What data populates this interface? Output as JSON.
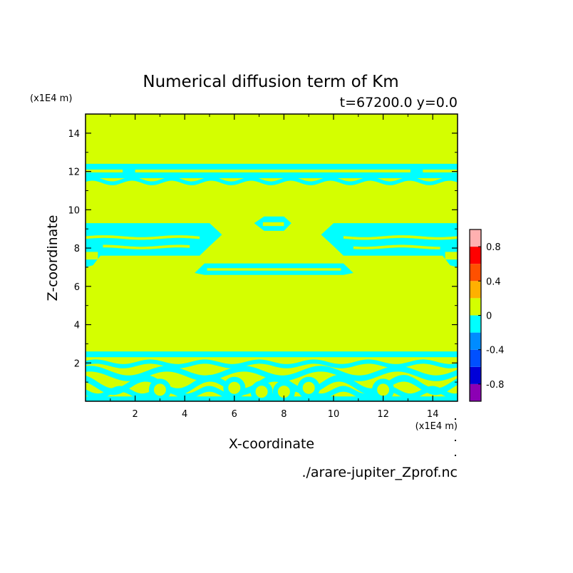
{
  "chart_data": {
    "type": "heatmap",
    "title": "Numerical diffusion term of Km",
    "subtitle": "t=67200.0 y=0.0",
    "xlabel": "X-coordinate",
    "ylabel": "Z-coordinate",
    "x_unit": "(x1E4 m)",
    "y_unit": "(x1E4 m)",
    "source_file": "./arare-jupiter_Zprof.nc",
    "xlim": [
      0,
      15
    ],
    "ylim": [
      0,
      15
    ],
    "x_ticks": [
      2,
      4,
      6,
      8,
      10,
      12,
      14
    ],
    "y_ticks": [
      2,
      4,
      6,
      8,
      10,
      12,
      14
    ],
    "background_level_color": "#d4ff00",
    "negative_level_color": "#00ffff",
    "colorbar": {
      "levels": [
        -1.0,
        -0.8,
        -0.6,
        -0.4,
        -0.2,
        0.0,
        0.2,
        0.4,
        0.6,
        0.8,
        1.0
      ],
      "colors": [
        "#8c00b4",
        "#0000d8",
        "#0050ff",
        "#008cff",
        "#00ffff",
        "#d4ff00",
        "#ffb000",
        "#ff5000",
        "#ff0000",
        "#ffb0b0"
      ],
      "tick_labels": [
        "0.8",
        "0.4",
        "0",
        "-0.4",
        "-0.8"
      ],
      "tick_values": [
        0.8,
        0.4,
        0.0,
        -0.4,
        -0.8
      ]
    },
    "regions_negative": [
      {
        "name": "upper band",
        "z_range": [
          11.4,
          12.5
        ],
        "x_range": [
          0,
          15
        ]
      },
      {
        "name": "left lobe",
        "z_range": [
          6.9,
          9.3
        ],
        "x_range": [
          0,
          5.5
        ]
      },
      {
        "name": "right lobe",
        "z_range": [
          6.9,
          9.3
        ],
        "x_range": [
          9.5,
          15
        ]
      },
      {
        "name": "central upper blob",
        "z_range": [
          8.9,
          9.7
        ],
        "x_range": [
          6.8,
          8.3
        ]
      },
      {
        "name": "central lower band",
        "z_range": [
          6.6,
          7.3
        ],
        "x_range": [
          4.4,
          10.8
        ]
      },
      {
        "name": "lower turbulent layer",
        "z_range": [
          0,
          2.6
        ],
        "x_range": [
          0,
          15
        ]
      }
    ]
  }
}
